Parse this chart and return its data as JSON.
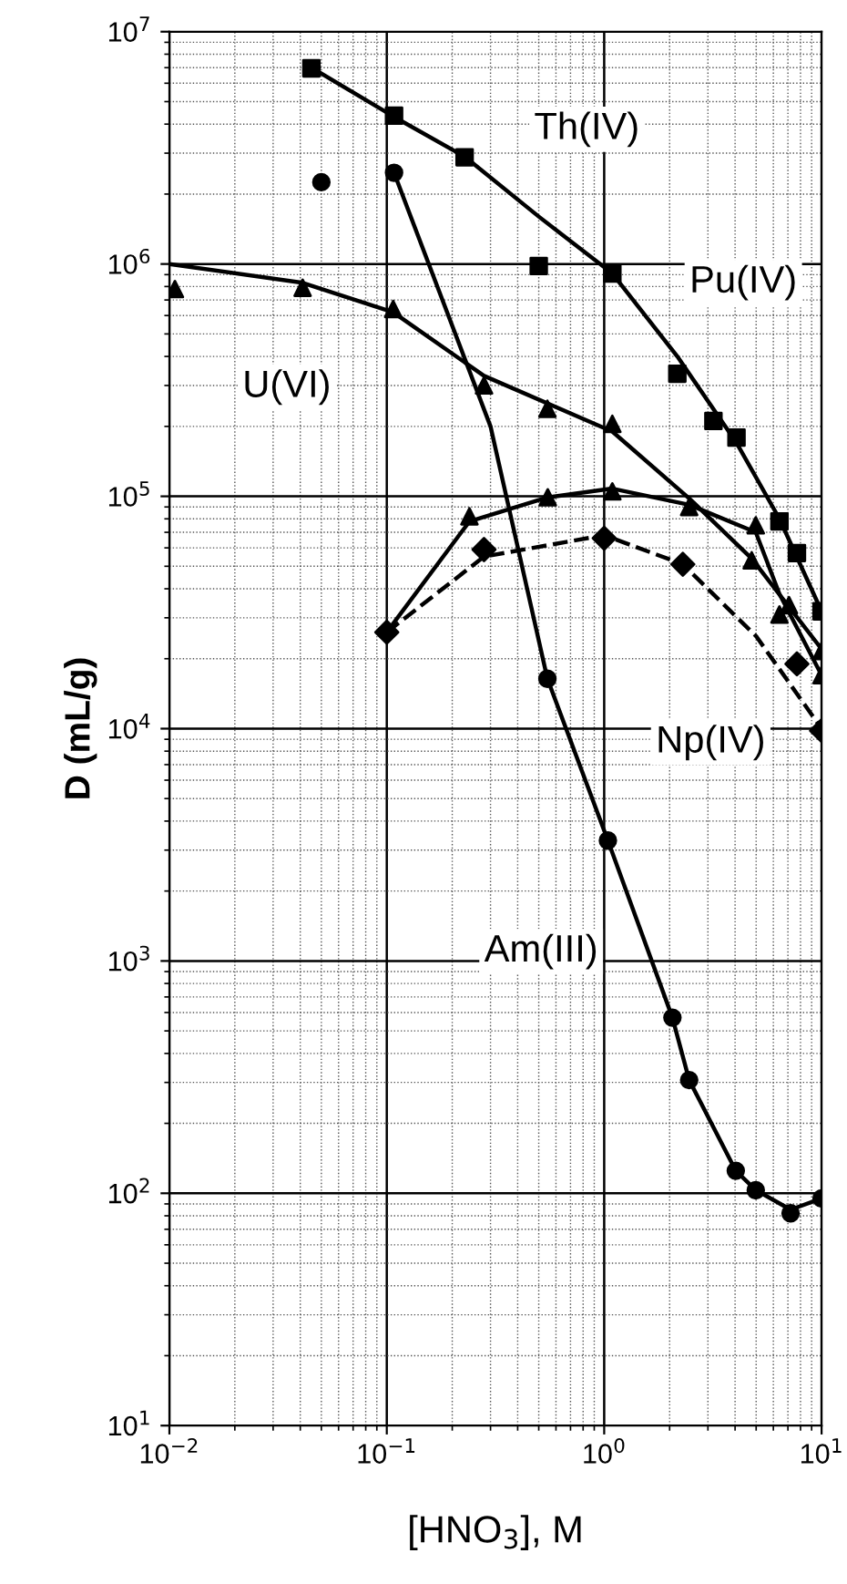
{
  "chart_data": {
    "type": "scatter",
    "xlabel": "[HNO$_{3}$], M",
    "ylabel": "D (mL/g)",
    "log": "xy",
    "grid": true,
    "xlim": [
      0.01,
      10
    ],
    "ylim": [
      10,
      10000000
    ],
    "xticks": [
      {
        "value": 0.01,
        "label": "10$^{−2}$"
      },
      {
        "value": 0.1,
        "label": "10$^{−1}$"
      },
      {
        "value": 1,
        "label": "10$^{0}$"
      },
      {
        "value": 10,
        "label": "10$^{1}$"
      }
    ],
    "yticks": [
      {
        "value": 10,
        "label": "10$^{1}$"
      },
      {
        "value": 100,
        "label": "10$^{2}$"
      },
      {
        "value": 1000,
        "label": "10$^{3}$"
      },
      {
        "value": 10000,
        "label": "10$^{4}$"
      },
      {
        "value": 100000,
        "label": "10$^{5}$"
      },
      {
        "value": 1000000,
        "label": "10$^{6}$"
      },
      {
        "value": 10000000,
        "label": "10$^{7}$"
      }
    ],
    "series": [
      {
        "marker": "square",
        "color": "#000000",
        "x": [
          0.045,
          0.108,
          0.228,
          0.5,
          1.09,
          2.17,
          3.18,
          4.06,
          6.4,
          7.7,
          10
        ],
        "values": [
          6950000,
          4350000,
          2880000,
          980000,
          910000,
          337000,
          211000,
          179000,
          78000,
          57000,
          32000
        ]
      },
      {
        "marker": "triangle",
        "color": "#000000",
        "x": [
          0.0106,
          0.041,
          0.107,
          0.28,
          0.548,
          1.09,
          2.46,
          4.77,
          7.08,
          10
        ],
        "values": [
          780000,
          790000,
          640000,
          300000,
          238000,
          205000,
          null,
          53000,
          34000,
          21600
        ]
      },
      {
        "marker": "triangle",
        "color": "#000000",
        "x": [
          0.24,
          0.55,
          1.09,
          2.46,
          4.98,
          6.4,
          10
        ],
        "values": [
          82000,
          99000,
          105000,
          90000,
          75000,
          31000,
          17000
        ]
      },
      {
        "marker": "diamond",
        "color": "#000000",
        "x": [
          0.1,
          0.28,
          1.0,
          2.3,
          7.7,
          10
        ],
        "values": [
          26000,
          59000,
          66000,
          51000,
          19000,
          9800
        ]
      },
      {
        "marker": "circle",
        "color": "#000000",
        "x": [
          0.05,
          0.108,
          0.548,
          1.04,
          2.06,
          2.46,
          4.03,
          4.98,
          7.2,
          10
        ],
        "values": [
          2250000,
          2470000,
          16400,
          3300,
          570,
          307,
          125,
          103,
          82,
          95
        ]
      },
      {
        "type": "line",
        "marker": "none",
        "line_style": "solid",
        "color": "#000000",
        "x": [
          0.045,
          0.108,
          0.228,
          0.5,
          1.09,
          2.17,
          4.06,
          6.4,
          10
        ],
        "values": [
          7000000,
          4300000,
          2900000,
          1600000,
          910000,
          400000,
          170000,
          80000,
          32000
        ]
      },
      {
        "type": "line",
        "marker": "none",
        "line_style": "solid",
        "color": "#000000",
        "x": [
          0.01,
          0.041,
          0.107,
          0.28,
          1.09,
          2.46,
          4.77,
          10
        ],
        "values": [
          1000000,
          830000,
          620000,
          330000,
          190000,
          98000,
          54000,
          22000
        ]
      },
      {
        "type": "line",
        "marker": "none",
        "line_style": "solid",
        "color": "#000000",
        "x": [
          0.1,
          0.24,
          0.55,
          1.09,
          2.46,
          4.98,
          6.4,
          10
        ],
        "values": [
          26000,
          78000,
          99000,
          108000,
          92000,
          70000,
          38000,
          17000
        ]
      },
      {
        "type": "line",
        "marker": "none",
        "line_style": "dashed",
        "color": "#000000",
        "x": [
          0.1,
          0.28,
          1.0,
          2.3,
          5,
          10
        ],
        "values": [
          26000,
          55000,
          68000,
          51000,
          25000,
          10000
        ]
      },
      {
        "type": "line",
        "marker": "none",
        "line_style": "solid",
        "color": "#000000",
        "x": [
          0.108,
          0.3,
          0.548,
          1.04,
          2.06,
          2.46,
          4.03,
          5,
          7.2,
          10
        ],
        "values": [
          2470000,
          200000,
          16400,
          3300,
          570,
          307,
          125,
          103,
          85,
          95
        ]
      }
    ],
    "annotations": [
      "Th(IV)",
      "Pu(IV)",
      "U(VI)",
      "Np(IV)",
      "Am(III)"
    ]
  }
}
